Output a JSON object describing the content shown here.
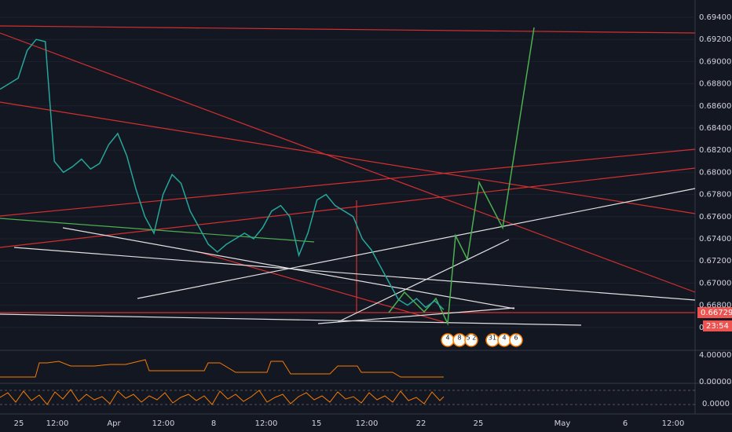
{
  "price_axis": {
    "labels": [
      "0.69400",
      "0.69200",
      "0.69000",
      "0.68800",
      "0.68600",
      "0.68400",
      "0.68200",
      "0.68000",
      "0.67800",
      "0.67600",
      "0.67400",
      "0.67200",
      "0.67000",
      "0.66800",
      "0"
    ]
  },
  "current_price": "0.66729",
  "countdown": "23:54",
  "indicator1_axis": {
    "labels": [
      "4.00000"
    ]
  },
  "indicator2_axis": {
    "labels": [
      "0.00000",
      "0.0000"
    ]
  },
  "time_axis": {
    "labels": [
      "25",
      "12:00",
      "Apr",
      "12:00",
      "8",
      "12:00",
      "15",
      "12:00",
      "22",
      "25",
      "May",
      "6",
      "12:00"
    ]
  },
  "event_badges": [
    "4",
    "8",
    "5 2",
    "31",
    "4",
    "6"
  ],
  "price_trace": [
    0.6875,
    0.688,
    0.6885,
    0.691,
    0.692,
    0.6918,
    0.681,
    0.68,
    0.6805,
    0.6812,
    0.6803,
    0.6808,
    0.6825,
    0.6835,
    0.6815,
    0.6785,
    0.676,
    0.6745,
    0.678,
    0.6798,
    0.679,
    0.6765,
    0.675,
    0.6735,
    0.6728,
    0.6735,
    0.674,
    0.6745,
    0.674,
    0.675,
    0.6765,
    0.677,
    0.676,
    0.6725,
    0.6745,
    0.6775,
    0.678,
    0.677,
    0.6765,
    0.676,
    0.674,
    0.673,
    0.6715,
    0.67,
    0.6685,
    0.668,
    0.6686,
    0.6678,
    0.6684,
    0.6676
  ]
}
